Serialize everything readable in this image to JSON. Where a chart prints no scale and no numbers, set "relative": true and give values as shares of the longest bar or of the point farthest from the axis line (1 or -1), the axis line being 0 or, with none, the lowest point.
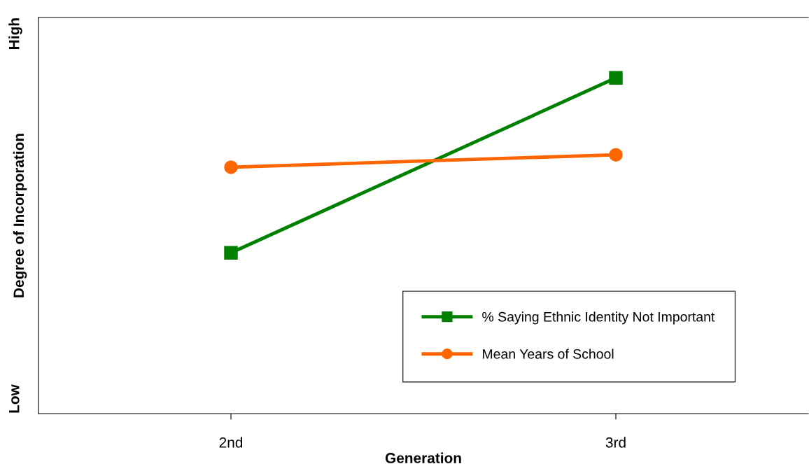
{
  "chart_data": {
    "type": "line",
    "relative": true,
    "xlabel": "Generation",
    "ylabel": "Degree of Incorporation",
    "categories": [
      "2nd",
      "3rd"
    ],
    "series": [
      {
        "name": "% Saying Ethnic Identity Not Important",
        "color": "#008000",
        "values": [
          0.479,
          1
        ],
        "marker": "square"
      },
      {
        "name": "Mean Years of School",
        "color": "#ff6600",
        "values": [
          0.734,
          0.771
        ],
        "marker": "circle"
      }
    ],
    "annotations": [
      "High",
      "Low"
    ],
    "legend": "bottom right",
    "grid": false
  }
}
